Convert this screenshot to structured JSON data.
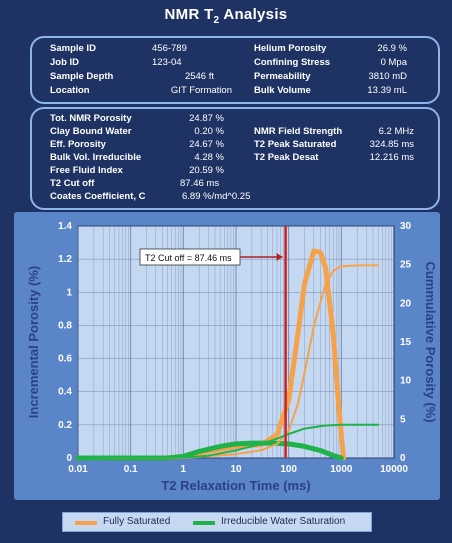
{
  "title_prefix": "NMR T",
  "title_sub": "2",
  "title_suffix": " Analysis",
  "panel1": {
    "left": [
      {
        "label": "Sample ID",
        "value": "456-789"
      },
      {
        "label": "Job ID",
        "value": "123-04"
      },
      {
        "label": "Sample Depth",
        "value": "2546 ft"
      },
      {
        "label": "Location",
        "value": "GIT Formation"
      }
    ],
    "right": [
      {
        "label": "Helium Porosity",
        "value": "26.9 %"
      },
      {
        "label": "Confining Stress",
        "value": "0 Mpa"
      },
      {
        "label": "Permeability",
        "value": "3810 mD"
      },
      {
        "label": "Bulk Volume",
        "value": "13.39 mL"
      }
    ]
  },
  "panel2": {
    "left": [
      {
        "label": "Tot. NMR Porosity",
        "value": "24.87 %"
      },
      {
        "label": "Clay Bound Water",
        "value": "0.20 %"
      },
      {
        "label": "Eff. Porosity",
        "value": "24.67 %"
      },
      {
        "label": "Bulk Vol. Irreducible",
        "value": "4.28 %"
      },
      {
        "label": "Free Fluid Index",
        "value": "20.59 %"
      },
      {
        "label": "T2 Cut off",
        "value": "87.46 ms"
      },
      {
        "label": "Coates Coefficient, C",
        "value": "6.89 %/md^0.25"
      }
    ],
    "right": [
      {
        "label": "NMR Field Strength",
        "value": "6.2 MHz"
      },
      {
        "label": "T2 Peak Saturated",
        "value": "324.85 ms"
      },
      {
        "label": "T2 Peak Desat",
        "value": "12.216 ms"
      }
    ]
  },
  "colors": {
    "background": "#1e3364",
    "panel_border": "#8fb4e8",
    "plot_bg": "#c5d8f2",
    "saturated": "#f5a24a",
    "irreducible": "#20b24a",
    "cutoff": "#d02020",
    "axis_text": "#2d3f8a"
  },
  "chart_data": {
    "type": "line",
    "xlabel": "T2 Relaxation Time (ms)",
    "ylabel": "Incremental Porosity (%)",
    "y2label": "Cummulative Porosity (%)",
    "xscale": "log",
    "xlim": [
      0.01,
      10000
    ],
    "ylim": [
      0,
      1.4
    ],
    "y2lim": [
      0,
      30
    ],
    "x_ticks": [
      "0.01",
      "0.1",
      "1",
      "10",
      "100",
      "1000",
      "10000"
    ],
    "y_ticks": [
      "0",
      "0.2",
      "0.4",
      "0.6",
      "0.8",
      "1",
      "1.2",
      "1.4"
    ],
    "y2_ticks": [
      "0",
      "5",
      "10",
      "15",
      "20",
      "25",
      "30"
    ],
    "grid": true,
    "cutoff": {
      "x": 87.46,
      "label": "T2 Cut off = 87.46 ms"
    },
    "legend": [
      "Fully Saturated",
      "Irreducible Water Saturation"
    ],
    "series": [
      {
        "name": "Fully Saturated",
        "axis": "left",
        "x": [
          0.01,
          0.5,
          1,
          3,
          10,
          30,
          60,
          100,
          150,
          200,
          300,
          400,
          500,
          700,
          900,
          1100
        ],
        "values": [
          0,
          0,
          0.01,
          0.04,
          0.07,
          0.08,
          0.14,
          0.35,
          0.75,
          1.05,
          1.25,
          1.24,
          1.15,
          0.75,
          0.3,
          0
        ]
      },
      {
        "name": "Irreducible Water Saturation",
        "axis": "left",
        "x": [
          0.01,
          0.5,
          1,
          2,
          5,
          10,
          20,
          50,
          100,
          200,
          400,
          700,
          1000
        ],
        "values": [
          0,
          0,
          0.01,
          0.04,
          0.07,
          0.085,
          0.09,
          0.09,
          0.085,
          0.07,
          0.045,
          0.015,
          0
        ]
      },
      {
        "name": "Fully Saturated",
        "axis": "right",
        "x": [
          0.01,
          1,
          10,
          30,
          60,
          100,
          150,
          200,
          300,
          500,
          700,
          1000,
          2000,
          5000
        ],
        "values": [
          0,
          0,
          0.5,
          1.0,
          1.8,
          3.5,
          7.0,
          11.0,
          17.0,
          22.5,
          24.2,
          24.8,
          24.9,
          24.9
        ]
      },
      {
        "name": "Irreducible Water Saturation",
        "axis": "right",
        "x": [
          0.01,
          1,
          3,
          10,
          30,
          60,
          100,
          200,
          500,
          1000,
          5000
        ],
        "values": [
          0,
          0.05,
          0.3,
          1.0,
          1.8,
          2.5,
          3.1,
          3.8,
          4.2,
          4.3,
          4.3
        ]
      }
    ]
  },
  "legend_labels": {
    "saturated": "Fully Saturated",
    "irreducible": "Irreducible Water Saturation"
  }
}
